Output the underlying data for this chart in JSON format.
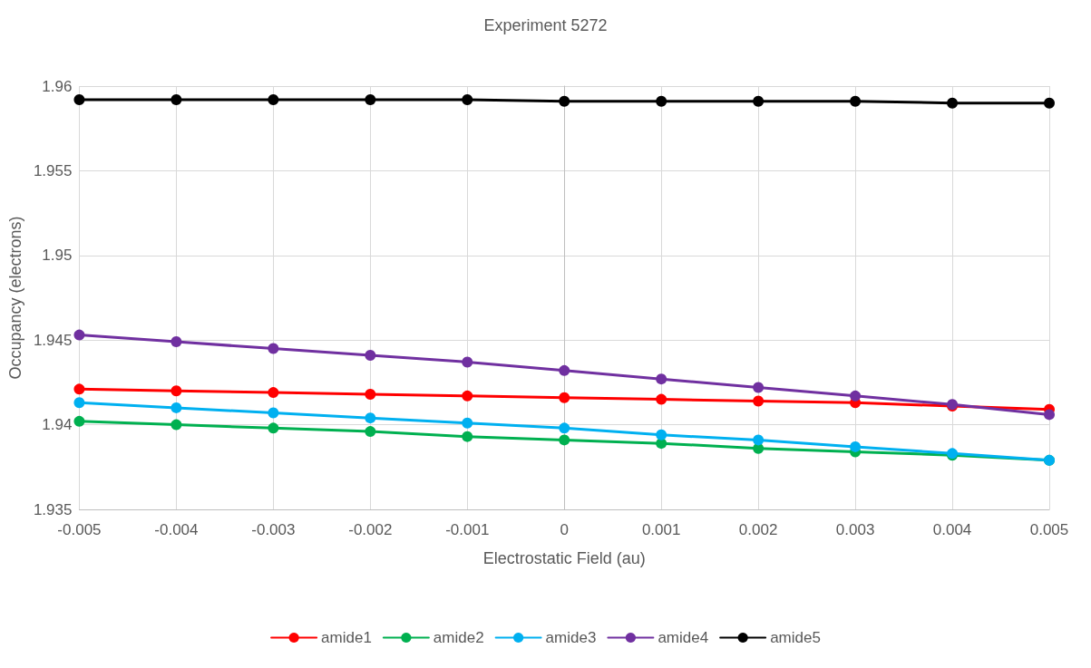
{
  "chart_data": {
    "type": "line",
    "title": "Experiment 5272",
    "xlabel": "Electrostatic Field (au)",
    "ylabel": "Occupancy (electrons)",
    "x": [
      -0.005,
      -0.004,
      -0.003,
      -0.002,
      -0.001,
      0,
      0.001,
      0.002,
      0.003,
      0.004,
      0.005
    ],
    "series": [
      {
        "name": "amide1",
        "color": "#ff0000",
        "values": [
          1.9421,
          1.942,
          1.9419,
          1.9418,
          1.9417,
          1.9416,
          1.9415,
          1.9414,
          1.9413,
          1.9411,
          1.9409
        ]
      },
      {
        "name": "amide2",
        "color": "#00b050",
        "values": [
          1.9402,
          1.94,
          1.9398,
          1.9396,
          1.9393,
          1.9391,
          1.9389,
          1.9386,
          1.9384,
          1.9382,
          1.9379
        ]
      },
      {
        "name": "amide3",
        "color": "#00b0f0",
        "values": [
          1.9413,
          1.941,
          1.9407,
          1.9404,
          1.9401,
          1.9398,
          1.9394,
          1.9391,
          1.9387,
          1.9383,
          1.9379
        ]
      },
      {
        "name": "amide4",
        "color": "#7030a0",
        "values": [
          1.9453,
          1.9449,
          1.9445,
          1.9441,
          1.9437,
          1.9432,
          1.9427,
          1.9422,
          1.9417,
          1.9412,
          1.9406
        ]
      },
      {
        "name": "amide5",
        "color": "#000000",
        "values": [
          1.9592,
          1.9592,
          1.9592,
          1.9592,
          1.9592,
          1.9591,
          1.9591,
          1.9591,
          1.9591,
          1.959,
          1.959
        ]
      }
    ],
    "xlim": [
      -0.005,
      0.005
    ],
    "xticks": [
      -0.005,
      -0.004,
      -0.003,
      -0.002,
      -0.001,
      0,
      0.001,
      0.002,
      0.003,
      0.004,
      0.005
    ],
    "ylim": [
      1.935,
      1.96
    ],
    "yticks": [
      1.935,
      1.94,
      1.945,
      1.95,
      1.955,
      1.96
    ],
    "grid": true,
    "legend": "bottom",
    "marker": "circle",
    "line_style": "solid"
  }
}
